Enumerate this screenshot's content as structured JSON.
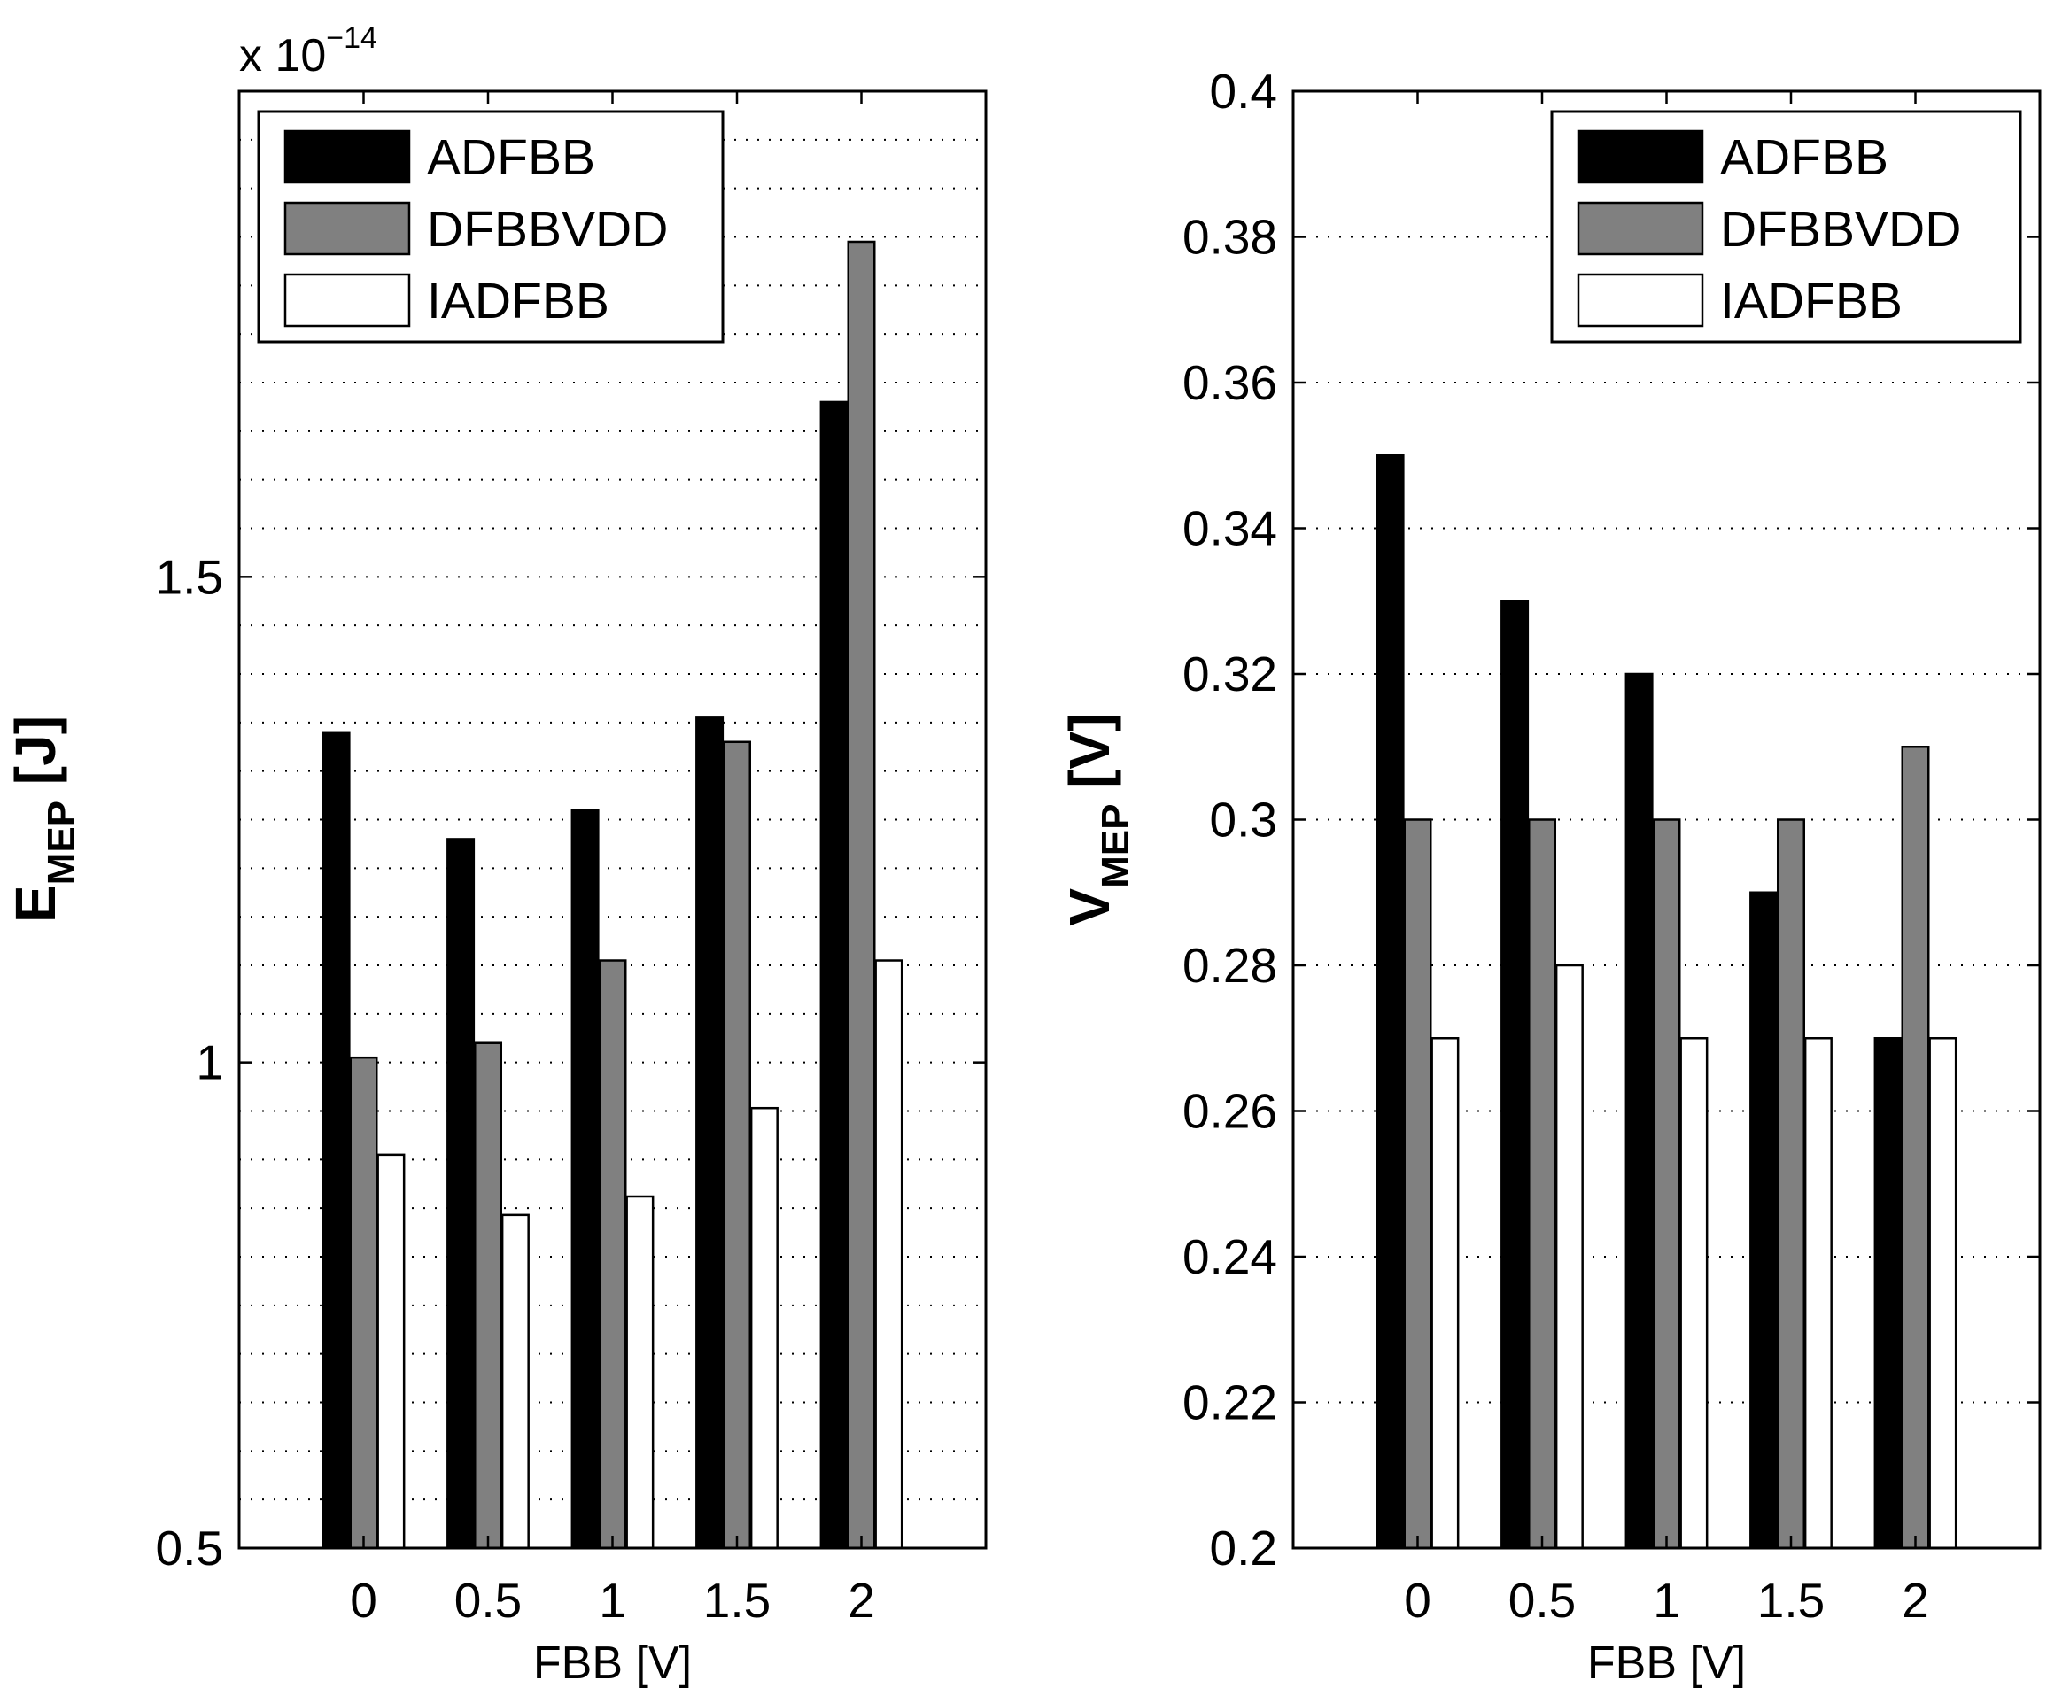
{
  "chart_data": [
    {
      "type": "bar",
      "categories": [
        "0",
        "0.5",
        "1",
        "1.5",
        "2"
      ],
      "series": [
        {
          "name": "ADFBB",
          "values": [
            1.34,
            1.23,
            1.26,
            1.355,
            1.68
          ],
          "color": "#000000"
        },
        {
          "name": "DFBBVDD",
          "values": [
            1.005,
            1.02,
            1.105,
            1.33,
            1.845
          ],
          "color": "#808080"
        },
        {
          "name": "IADFBB",
          "values": [
            0.905,
            0.843,
            0.862,
            0.953,
            1.105
          ],
          "color": "#ffffff"
        }
      ],
      "xlabel": "FBB [V]",
      "ylabel": "E",
      "ylabel_sub": "MEP",
      "ylabel_unit": "[J]",
      "ylim": [
        0.5,
        2.0
      ],
      "yticks": [
        0.5,
        1,
        1.5
      ],
      "ytick_labels": [
        "0.5",
        "1",
        "1.5"
      ],
      "exponent_label": "x 10",
      "exponent_power": "−14",
      "grid": true,
      "legend_position": "top-left"
    },
    {
      "type": "bar",
      "categories": [
        "0",
        "0.5",
        "1",
        "1.5",
        "2"
      ],
      "series": [
        {
          "name": "ADFBB",
          "values": [
            0.35,
            0.33,
            0.32,
            0.29,
            0.27
          ],
          "color": "#000000"
        },
        {
          "name": "DFBBVDD",
          "values": [
            0.3,
            0.3,
            0.3,
            0.3,
            0.31
          ],
          "color": "#808080"
        },
        {
          "name": "IADFBB",
          "values": [
            0.27,
            0.28,
            0.27,
            0.27,
            0.27
          ],
          "color": "#ffffff"
        }
      ],
      "xlabel": "FBB [V]",
      "ylabel": "V",
      "ylabel_sub": "MEP",
      "ylabel_unit": "[V]",
      "ylim": [
        0.2,
        0.4
      ],
      "yticks": [
        0.2,
        0.22,
        0.24,
        0.26,
        0.28,
        0.3,
        0.32,
        0.34,
        0.36,
        0.38,
        0.4
      ],
      "ytick_labels": [
        "0.2",
        "0.22",
        "0.24",
        "0.26",
        "0.28",
        "0.3",
        "0.32",
        "0.34",
        "0.36",
        "0.38",
        "0.4"
      ],
      "grid": true,
      "legend_position": "top-right"
    }
  ]
}
